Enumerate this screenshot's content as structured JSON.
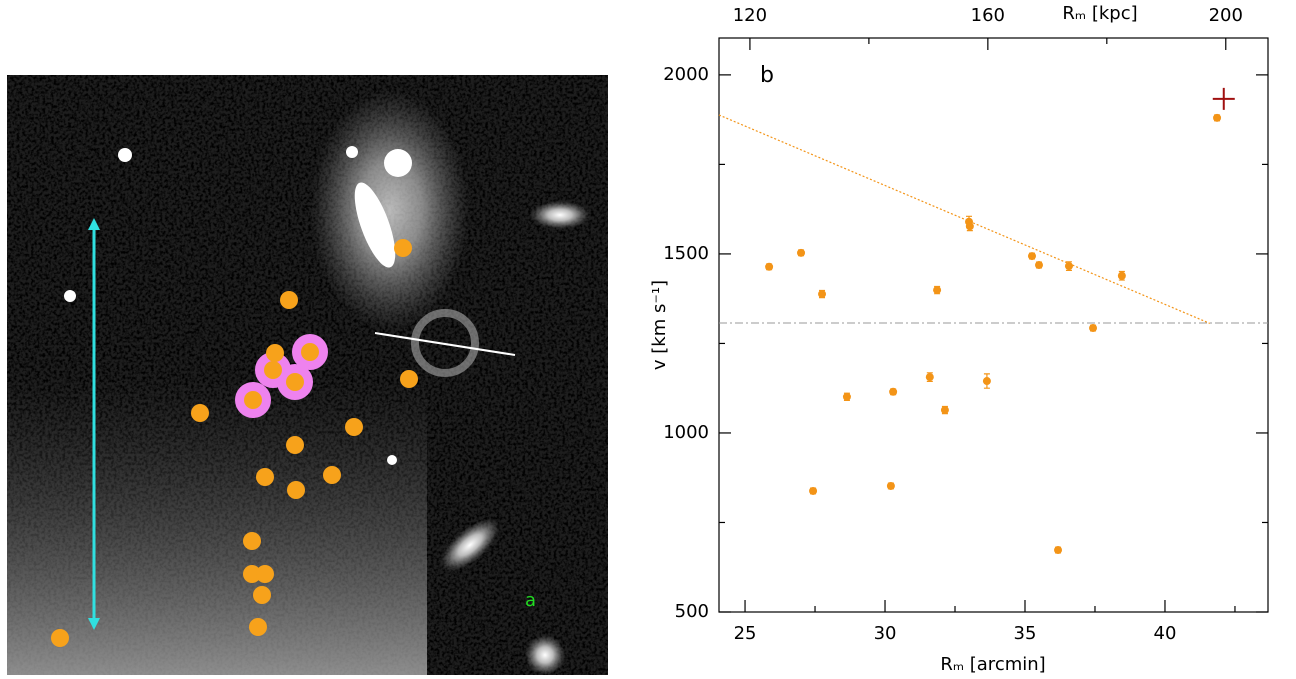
{
  "image": {
    "label": "a"
  },
  "chart_data": {
    "type": "scatter",
    "panel_label": "b",
    "xlabel": "Rₘ [arcmin]",
    "x2label": "Rₘ [kpc]",
    "ylabel": "v [km s⁻¹]",
    "xlim": [
      24.07,
      43.68
    ],
    "xticks": [
      25,
      30,
      35,
      40
    ],
    "xminor_ticks": [
      27.5,
      32.5,
      37.5,
      42.5
    ],
    "x2lim": [
      114.8,
      207.1
    ],
    "x2ticks": [
      120,
      160,
      200
    ],
    "x2minor_ticks": [
      140,
      180
    ],
    "ylim": [
      500,
      2103
    ],
    "yticks": [
      500,
      1000,
      1500,
      2000
    ],
    "yminor_ticks": [
      750,
      1250,
      1750
    ],
    "color": "#f39417",
    "x": [
      25.86,
      27.0,
      27.75,
      28.64,
      27.43,
      30.29,
      30.21,
      31.6,
      31.86,
      32.14,
      33.0,
      33.03,
      33.64,
      35.25,
      35.5,
      36.57,
      36.18,
      37.43,
      38.46,
      41.86
    ],
    "values": [
      1464,
      1503,
      1388,
      1101,
      838,
      1115,
      852,
      1156,
      1399,
      1064,
      1590,
      1577,
      1145,
      1494,
      1469,
      1466,
      673,
      1293,
      1439,
      1880
    ],
    "errors": [
      8,
      8,
      10,
      10,
      8,
      8,
      8,
      12,
      10,
      10,
      15,
      12,
      20,
      8,
      8,
      12,
      8,
      8,
      12,
      8
    ],
    "marker": {
      "x": 42.1,
      "y": 1933,
      "color": "#a01010"
    },
    "trend": {
      "x": [
        24.07,
        41.6
      ],
      "y": [
        1888,
        1306
      ],
      "color": "#f39417"
    },
    "reference": {
      "y": 1307,
      "color": "#999999"
    }
  }
}
